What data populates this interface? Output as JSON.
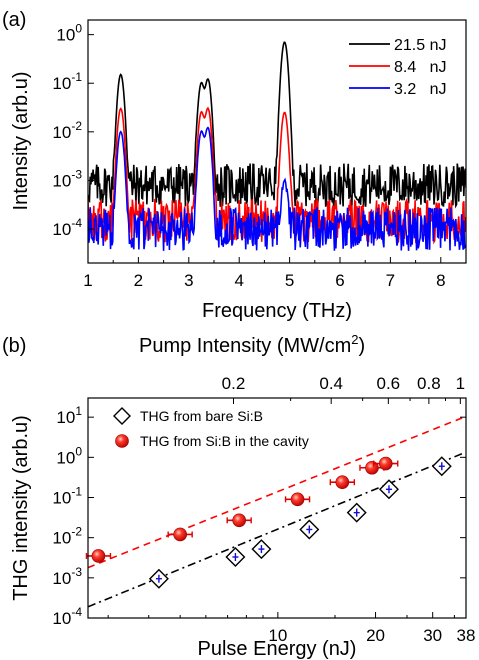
{
  "chart_data": [
    {
      "panel_label": "(a)",
      "type": "line",
      "xlabel": "Frequency (THz)",
      "ylabel": "Intensity (arb.u)",
      "xlim": [
        1,
        8.5
      ],
      "ylim": [
        2e-05,
        2
      ],
      "yscale": "log",
      "xticks": [
        "1",
        "2",
        "3",
        "4",
        "5",
        "6",
        "7",
        "8"
      ],
      "yticks": [
        "10^-4",
        "10^-3",
        "10^-2",
        "10^-1",
        "10^0"
      ],
      "legend_position": "top-right",
      "series": [
        {
          "name": "21.5 nJ",
          "color": "#000000",
          "noise_floor": 0.0008,
          "peaks": [
            [
              1.65,
              0.15
            ],
            [
              3.25,
              0.1
            ],
            [
              3.38,
              0.12
            ],
            [
              4.9,
              0.7
            ]
          ]
        },
        {
          "name": "8.4   nJ",
          "color": "#ff0000",
          "noise_floor": 0.00015,
          "peaks": [
            [
              1.65,
              0.03
            ],
            [
              3.25,
              0.025
            ],
            [
              3.38,
              0.03
            ],
            [
              4.9,
              0.025
            ]
          ]
        },
        {
          "name": "3.2   nJ",
          "color": "#0000ff",
          "noise_floor": 0.0001,
          "peaks": [
            [
              1.65,
              0.01
            ],
            [
              3.25,
              0.01
            ],
            [
              3.38,
              0.012
            ],
            [
              4.9,
              0.0008
            ]
          ]
        }
      ]
    },
    {
      "panel_label": "(b)",
      "type": "scatter",
      "xlabel": "Pulse Energy (nJ)",
      "x2label_main": "Pump Intensity (MW/cm",
      "x2label_sup": "2",
      "x2label_end": ")",
      "ylabel": "THG intensity (arb.u)",
      "xscale": "log",
      "yscale": "log",
      "xlim": [
        2.6,
        38
      ],
      "ylim": [
        0.0001,
        30
      ],
      "xticks": [
        "10",
        "20",
        "30",
        "38"
      ],
      "x2ticks": [
        "0.2",
        "0.4",
        "0.6",
        "0.8",
        "1"
      ],
      "yticks": [
        "10^-4",
        "10^-3",
        "10^-2",
        "10^-1",
        "10^0",
        "10^1"
      ],
      "legend_position": "top-left",
      "series": [
        {
          "name": "THG from bare Si:B",
          "marker": "open-diamond",
          "x": [
            4.3,
            7.4,
            8.9,
            12.5,
            17.5,
            22.0,
            32.0
          ],
          "y": [
            0.00095,
            0.0033,
            0.0052,
            0.016,
            0.042,
            0.16,
            0.6
          ]
        },
        {
          "name": "THG from Si:B in the cavity",
          "marker": "red-sphere",
          "x": [
            2.8,
            5.0,
            7.6,
            11.5,
            15.8,
            19.5,
            21.5
          ],
          "y": [
            0.0035,
            0.012,
            0.027,
            0.09,
            0.24,
            0.55,
            0.7
          ]
        }
      ],
      "fits": [
        {
          "style": "dashed",
          "color": "#ff0000",
          "x": [
            2.6,
            38
          ],
          "y": [
            0.0018,
            10.5
          ]
        },
        {
          "style": "dash-dot",
          "color": "#000000",
          "x": [
            2.6,
            38
          ],
          "y": [
            0.00019,
            1.35
          ]
        }
      ]
    }
  ]
}
